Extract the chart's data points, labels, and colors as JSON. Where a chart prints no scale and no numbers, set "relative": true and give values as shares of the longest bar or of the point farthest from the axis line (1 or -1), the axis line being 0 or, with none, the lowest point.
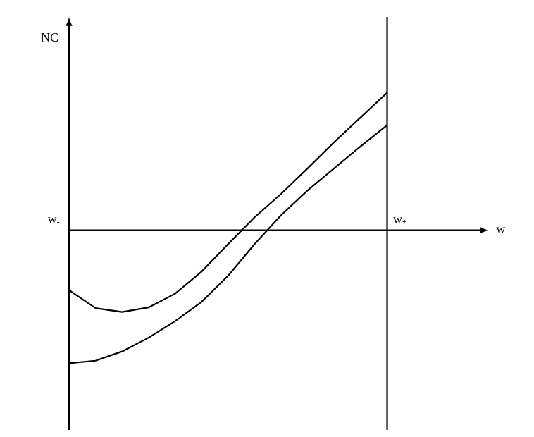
{
  "chart_data": {
    "type": "line",
    "relative": true,
    "ylabel": "NC",
    "categories": [
      null,
      null,
      null,
      null,
      null,
      null,
      null,
      null,
      null,
      null,
      null,
      null,
      null
    ],
    "annotations": [
      "w$_{-}$",
      "w"
    ],
    "series": [
      {
        "color": "#000000",
        "values": [
          -0.434,
          -0.565,
          -0.593,
          -0.56,
          -0.46,
          -0.3,
          -0.1,
          0.095,
          0.265,
          0.45,
          0.64,
          0.82,
          1
        ]
      },
      {
        "color": "#000000",
        "values": [
          -0.966,
          -0.947,
          -0.88,
          -0.78,
          -0.66,
          -0.52,
          -0.33,
          -0.1,
          0.11,
          0.29,
          0.45,
          0.61,
          0.763
        ]
      }
    ],
    "ref_lines": [
      {
        "axis": "x",
        "label": "w$_{+}$",
        "color": "#000000"
      }
    ]
  }
}
